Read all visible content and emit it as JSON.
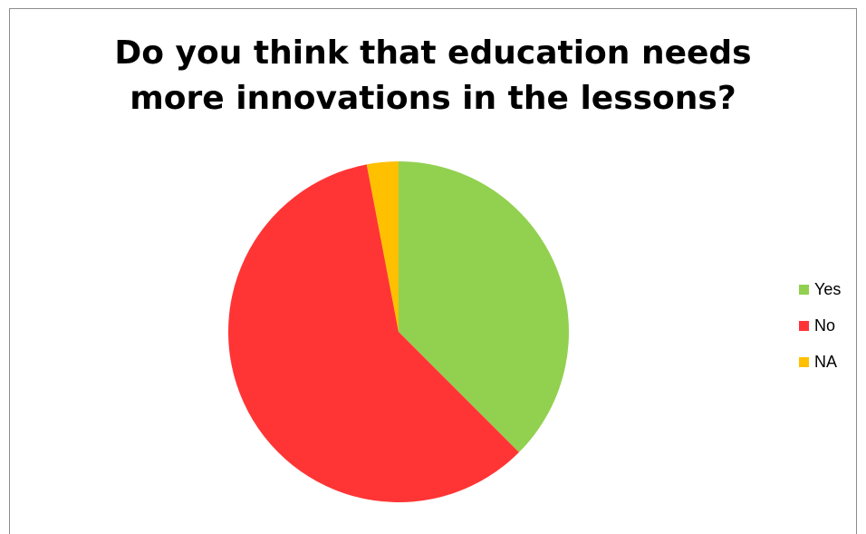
{
  "chart_data": {
    "type": "pie",
    "title": "Do you think that education needs more innovations in the lessons?",
    "title_lines": [
      "Do you think that education needs",
      "more innovations in the lessons?"
    ],
    "categories": [
      "Yes",
      "No",
      "NA"
    ],
    "values": [
      37.5,
      59.5,
      3.0
    ],
    "colors": [
      "#92D050",
      "#FF3535",
      "#FFC000"
    ],
    "legend_position": "right",
    "start_angle": "12 o'clock, clockwise"
  }
}
